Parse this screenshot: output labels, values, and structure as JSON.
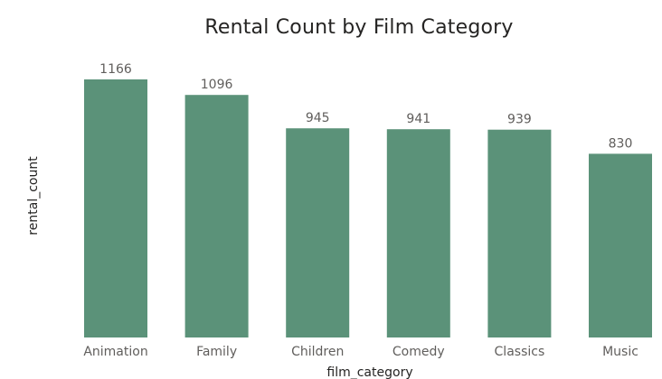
{
  "chart_data": {
    "type": "bar",
    "title": "Rental Count by Film Category",
    "xlabel": "film_category",
    "ylabel": "rental_count",
    "categories": [
      "Animation",
      "Family",
      "Children",
      "Comedy",
      "Classics",
      "Music"
    ],
    "values": [
      1166,
      1096,
      945,
      941,
      939,
      830
    ],
    "ylim": [
      0,
      1166
    ],
    "grid": false,
    "data_labels": true,
    "bar_color": "#5b9279"
  }
}
